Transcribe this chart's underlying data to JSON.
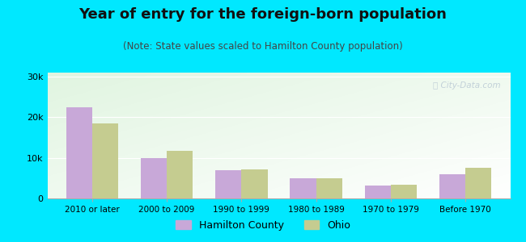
{
  "title": "Year of entry for the foreign-born population",
  "subtitle": "(Note: State values scaled to Hamilton County population)",
  "categories": [
    "2010 or later",
    "2000 to 2009",
    "1990 to 1999",
    "1980 to 1989",
    "1970 to 1979",
    "Before 1970"
  ],
  "hamilton_county": [
    22500,
    10000,
    7000,
    5000,
    3200,
    6000
  ],
  "ohio": [
    18500,
    11800,
    7200,
    5000,
    3400,
    7500
  ],
  "hamilton_color": "#c8a8d8",
  "ohio_color": "#c5cc90",
  "background_outer": "#00e8ff",
  "ylim": [
    0,
    31000
  ],
  "yticks": [
    0,
    10000,
    20000,
    30000
  ],
  "ytick_labels": [
    "0",
    "10k",
    "20k",
    "30k"
  ],
  "bar_width": 0.35,
  "title_fontsize": 13,
  "subtitle_fontsize": 8.5,
  "legend_labels": [
    "Hamilton County",
    "Ohio"
  ],
  "watermark": "Ⓢ City-Data.com"
}
